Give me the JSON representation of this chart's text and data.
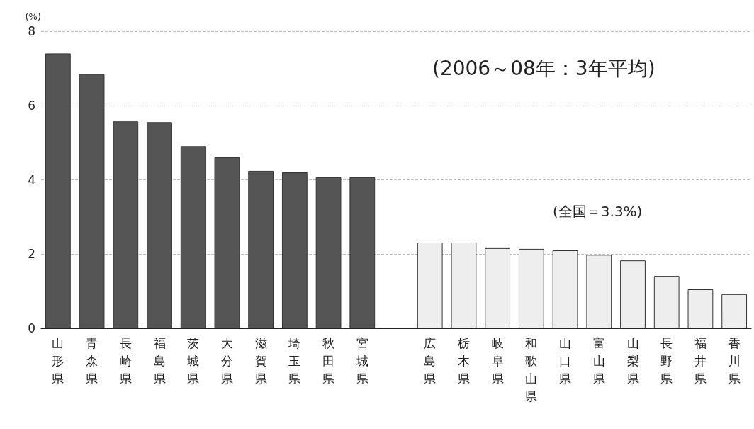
{
  "chart_data": {
    "type": "bar",
    "ylabel": "(%)",
    "categories": [
      "山形県",
      "青森県",
      "長崎県",
      "福島県",
      "茨城県",
      "大分県",
      "滋賀県",
      "埼玉県",
      "秋田県",
      "宮城県",
      null,
      "広島県",
      "栃木県",
      "岐阜県",
      "和歌山県",
      "山口県",
      "富山県",
      "山梨県",
      "長野県",
      "福井県",
      "香川県"
    ],
    "values": [
      7.4,
      6.85,
      5.57,
      5.55,
      4.9,
      4.6,
      4.24,
      4.2,
      4.07,
      4.07,
      null,
      2.31,
      2.31,
      2.16,
      2.14,
      2.1,
      1.98,
      1.83,
      1.41,
      1.05,
      0.92
    ],
    "colors": [
      "#555555",
      "#555555",
      "#555555",
      "#555555",
      "#555555",
      "#555555",
      "#555555",
      "#555555",
      "#555555",
      "#555555",
      "#ffffff",
      "#eeeeee",
      "#eeeeee",
      "#eeeeee",
      "#eeeeee",
      "#eeeeee",
      "#eeeeee",
      "#eeeeee",
      "#eeeeee",
      "#eeeeee",
      "#eeeeee"
    ],
    "ylim": [
      0,
      8
    ],
    "yticks": [
      0,
      2,
      4,
      6,
      8
    ],
    "grid": "y",
    "annotations": [
      "(2006～08年：3年平均)",
      "(全国＝3.3%)"
    ]
  }
}
